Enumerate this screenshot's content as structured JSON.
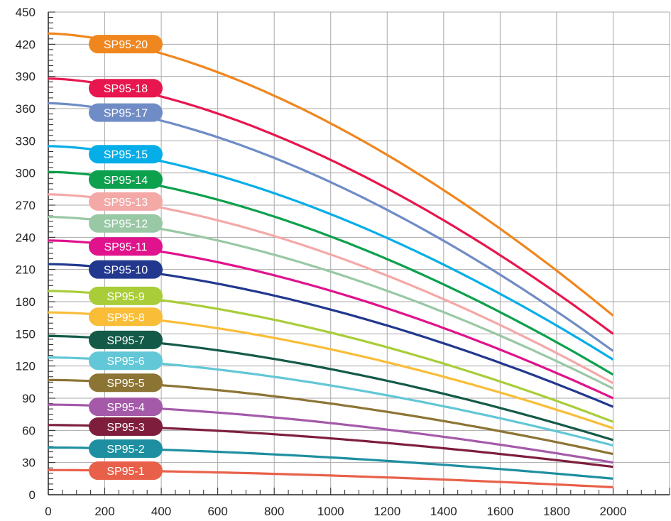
{
  "chart_data": {
    "type": "line",
    "title": "",
    "xlabel": "",
    "ylabel": "",
    "xlim": [
      0,
      2200
    ],
    "ylim": [
      0,
      450
    ],
    "x_ticks": [
      0,
      200,
      400,
      600,
      800,
      1000,
      1200,
      1400,
      1600,
      1800,
      2000
    ],
    "y_ticks": [
      0,
      30,
      60,
      90,
      120,
      150,
      180,
      210,
      240,
      270,
      300,
      330,
      360,
      390,
      420,
      450
    ],
    "x_tick_labels": [
      "0",
      "200",
      "400",
      "600",
      "800",
      "1000",
      "1200",
      "1400",
      "1600",
      "1800",
      "2000"
    ],
    "y_tick_labels": [
      "0",
      "30",
      "60",
      "90",
      "120",
      "150",
      "180",
      "210",
      "240",
      "270",
      "300",
      "330",
      "360",
      "390",
      "420",
      "450"
    ],
    "grid": true,
    "x_max_data": 2000,
    "series": [
      {
        "name": "SP95-1",
        "color": "#E9604A",
        "y0": 23,
        "y2000": 7
      },
      {
        "name": "SP95-2",
        "color": "#1E8FA0",
        "y0": 44,
        "y2000": 15
      },
      {
        "name": "SP95-3",
        "color": "#7E1E3C",
        "y0": 65,
        "y2000": 26
      },
      {
        "name": "SP95-4",
        "color": "#A45AA9",
        "y0": 84,
        "y2000": 30
      },
      {
        "name": "SP95-5",
        "color": "#8C7434",
        "y0": 107,
        "y2000": 38
      },
      {
        "name": "SP95-6",
        "color": "#62C7D6",
        "y0": 128,
        "y2000": 46
      },
      {
        "name": "SP95-7",
        "color": "#145A48",
        "y0": 148,
        "y2000": 51
      },
      {
        "name": "SP95-8",
        "color": "#F9BD38",
        "y0": 170,
        "y2000": 62
      },
      {
        "name": "SP95-9",
        "color": "#A9CD38",
        "y0": 190,
        "y2000": 68
      },
      {
        "name": "SP95-10",
        "color": "#22388E",
        "y0": 215,
        "y2000": 82
      },
      {
        "name": "SP95-11",
        "color": "#E0138C",
        "y0": 237,
        "y2000": 90
      },
      {
        "name": "SP95-12",
        "color": "#99C8A5",
        "y0": 259,
        "y2000": 99
      },
      {
        "name": "SP95-13",
        "color": "#F4A9A7",
        "y0": 280,
        "y2000": 104
      },
      {
        "name": "SP95-14",
        "color": "#0DA04D",
        "y0": 301,
        "y2000": 112
      },
      {
        "name": "SP95-15",
        "color": "#05AEE8",
        "y0": 325,
        "y2000": 126
      },
      {
        "name": "SP95-17",
        "color": "#6F8CC6",
        "y0": 365,
        "y2000": 134
      },
      {
        "name": "SP95-18",
        "color": "#E8164E",
        "y0": 388,
        "y2000": 150
      },
      {
        "name": "SP95-20",
        "color": "#F0861E",
        "y0": 430,
        "y2000": 167
      }
    ]
  }
}
